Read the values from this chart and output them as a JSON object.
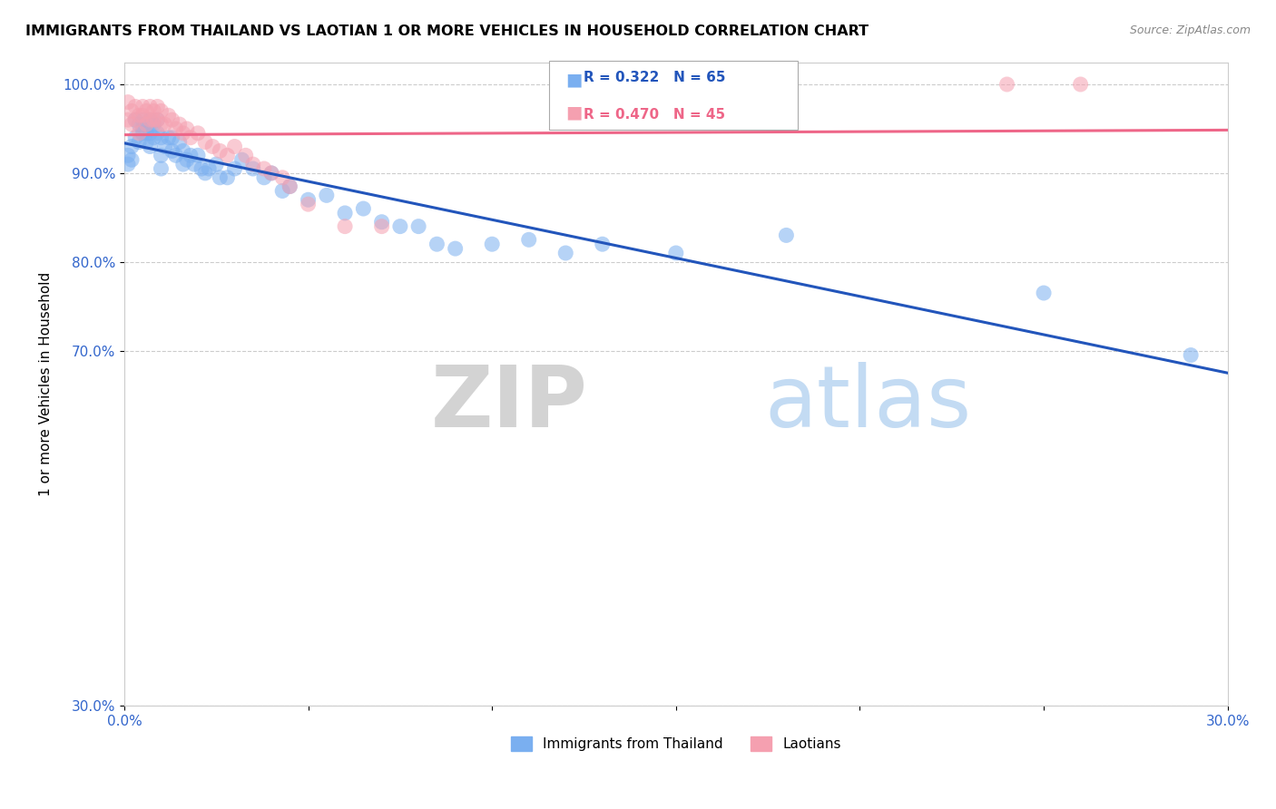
{
  "title": "IMMIGRANTS FROM THAILAND VS LAOTIAN 1 OR MORE VEHICLES IN HOUSEHOLD CORRELATION CHART",
  "source": "Source: ZipAtlas.com",
  "ylabel": "1 or more Vehicles in Household",
  "legend_labels": [
    "Immigrants from Thailand",
    "Laotians"
  ],
  "blue_label": "R = 0.322   N = 65",
  "pink_label": "R = 0.470   N = 45",
  "xlim": [
    0.0,
    0.3
  ],
  "ylim": [
    0.3,
    1.025
  ],
  "blue_color": "#7aaff0",
  "pink_color": "#f5a0b0",
  "blue_line_color": "#2255bb",
  "pink_line_color": "#ee6688",
  "grid_color": "#cccccc",
  "watermark_zip": "ZIP",
  "watermark_atlas": "atlas",
  "blue_scatter_x": [
    0.001,
    0.001,
    0.002,
    0.002,
    0.003,
    0.003,
    0.004,
    0.004,
    0.005,
    0.005,
    0.005,
    0.006,
    0.006,
    0.007,
    0.007,
    0.007,
    0.008,
    0.008,
    0.009,
    0.009,
    0.01,
    0.01,
    0.01,
    0.011,
    0.012,
    0.013,
    0.013,
    0.014,
    0.015,
    0.016,
    0.016,
    0.017,
    0.018,
    0.019,
    0.02,
    0.021,
    0.022,
    0.023,
    0.025,
    0.026,
    0.028,
    0.03,
    0.032,
    0.035,
    0.038,
    0.04,
    0.043,
    0.045,
    0.05,
    0.055,
    0.06,
    0.065,
    0.07,
    0.075,
    0.08,
    0.085,
    0.09,
    0.1,
    0.11,
    0.12,
    0.13,
    0.15,
    0.18,
    0.25,
    0.29
  ],
  "blue_scatter_y": [
    0.92,
    0.91,
    0.93,
    0.915,
    0.96,
    0.94,
    0.955,
    0.935,
    0.96,
    0.95,
    0.945,
    0.945,
    0.935,
    0.96,
    0.945,
    0.93,
    0.955,
    0.94,
    0.96,
    0.945,
    0.94,
    0.92,
    0.905,
    0.93,
    0.94,
    0.94,
    0.925,
    0.92,
    0.935,
    0.925,
    0.91,
    0.915,
    0.92,
    0.91,
    0.92,
    0.905,
    0.9,
    0.905,
    0.91,
    0.895,
    0.895,
    0.905,
    0.915,
    0.905,
    0.895,
    0.9,
    0.88,
    0.885,
    0.87,
    0.875,
    0.855,
    0.86,
    0.845,
    0.84,
    0.84,
    0.82,
    0.815,
    0.82,
    0.825,
    0.81,
    0.82,
    0.81,
    0.83,
    0.765,
    0.695
  ],
  "pink_scatter_x": [
    0.001,
    0.001,
    0.002,
    0.002,
    0.003,
    0.003,
    0.004,
    0.004,
    0.005,
    0.005,
    0.006,
    0.006,
    0.007,
    0.007,
    0.008,
    0.008,
    0.009,
    0.009,
    0.01,
    0.01,
    0.011,
    0.012,
    0.013,
    0.014,
    0.015,
    0.016,
    0.017,
    0.018,
    0.02,
    0.022,
    0.024,
    0.026,
    0.028,
    0.03,
    0.033,
    0.035,
    0.038,
    0.04,
    0.043,
    0.045,
    0.05,
    0.06,
    0.07,
    0.24,
    0.26
  ],
  "pink_scatter_y": [
    0.98,
    0.96,
    0.97,
    0.955,
    0.975,
    0.96,
    0.965,
    0.945,
    0.975,
    0.965,
    0.97,
    0.955,
    0.975,
    0.96,
    0.97,
    0.96,
    0.975,
    0.96,
    0.97,
    0.955,
    0.955,
    0.965,
    0.96,
    0.95,
    0.955,
    0.945,
    0.95,
    0.94,
    0.945,
    0.935,
    0.93,
    0.925,
    0.92,
    0.93,
    0.92,
    0.91,
    0.905,
    0.9,
    0.895,
    0.885,
    0.865,
    0.84,
    0.84,
    1.0,
    1.0
  ]
}
